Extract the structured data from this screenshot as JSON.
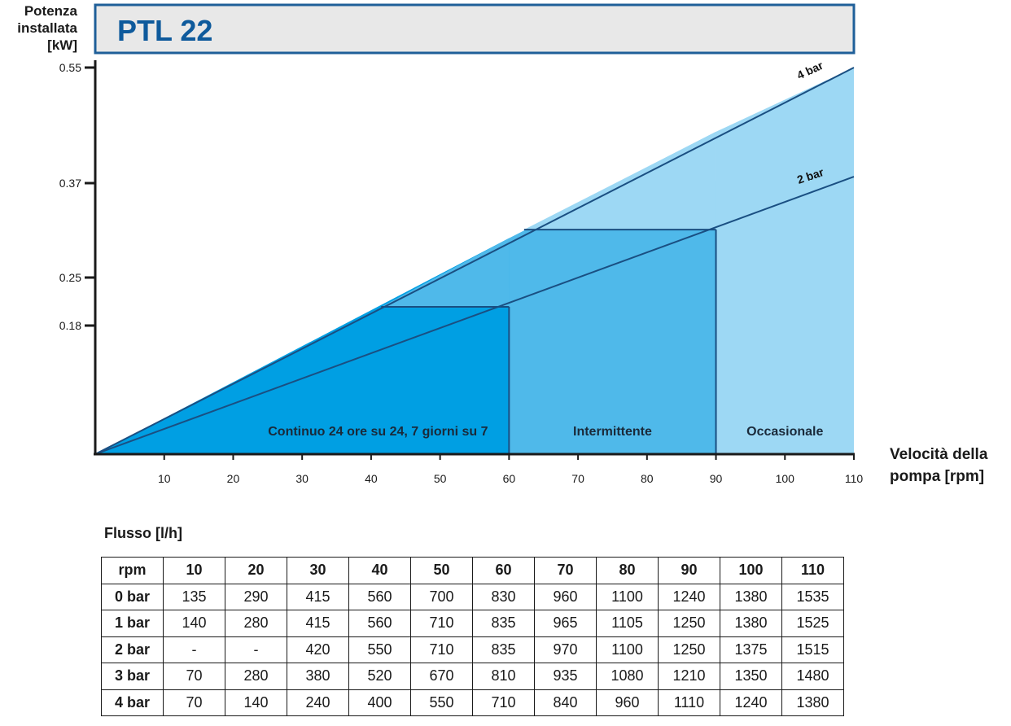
{
  "chart_data": {
    "type": "area",
    "title": "PTL 22",
    "ylabel": [
      "Potenza",
      "installata",
      "[kW]"
    ],
    "xlabel": [
      "Velocità della",
      "pompa [rpm]"
    ],
    "xlim": [
      0,
      110
    ],
    "xticks": [
      10,
      20,
      30,
      40,
      50,
      60,
      70,
      80,
      90,
      100,
      110
    ],
    "yticks": [
      {
        "value": 0.18,
        "label": "0.18"
      },
      {
        "value": 0.25,
        "label": "0.25"
      },
      {
        "value": 0.37,
        "label": "0.37"
      },
      {
        "value": 0.55,
        "label": "0.55"
      }
    ],
    "series": [
      {
        "name": "4 bar",
        "x": [
          0,
          110
        ],
        "y": [
          0,
          0.55
        ]
      },
      {
        "name": "2 bar",
        "x": [
          0,
          110
        ],
        "y": [
          0,
          0.38
        ]
      }
    ],
    "zones": [
      {
        "label": "Continuo 24 ore su 24, 7 giorni su 7",
        "x_from": 0,
        "x_to": 60,
        "color": "#009fe3"
      },
      {
        "label": "Intermittente",
        "x_from": 60,
        "x_to": 90,
        "color": "#4fb9ea"
      },
      {
        "label": "Occasionale",
        "x_from": 90,
        "x_to": 110,
        "color": "#9dd8f4"
      }
    ]
  },
  "table": {
    "caption": "Flusso [l/h]",
    "headers": [
      "rpm",
      "10",
      "20",
      "30",
      "40",
      "50",
      "60",
      "70",
      "80",
      "90",
      "100",
      "110"
    ],
    "rows": [
      [
        "0 bar",
        "135",
        "290",
        "415",
        "560",
        "700",
        "830",
        "960",
        "1100",
        "1240",
        "1380",
        "1535"
      ],
      [
        "1 bar",
        "140",
        "280",
        "415",
        "560",
        "710",
        "835",
        "965",
        "1105",
        "1250",
        "1380",
        "1525"
      ],
      [
        "2 bar",
        "-",
        "-",
        "420",
        "550",
        "710",
        "835",
        "970",
        "1100",
        "1250",
        "1375",
        "1515"
      ],
      [
        "3 bar",
        "70",
        "280",
        "380",
        "520",
        "670",
        "810",
        "935",
        "1080",
        "1210",
        "1350",
        "1480"
      ],
      [
        "4 bar",
        "70",
        "140",
        "240",
        "400",
        "550",
        "710",
        "840",
        "960",
        "1110",
        "1240",
        "1380"
      ]
    ]
  },
  "colors": {
    "title_fill": "#e8e8e8",
    "title_border": "#1f5f99",
    "title_text": "#0e5a9c",
    "line_color": "#1a4f82"
  }
}
